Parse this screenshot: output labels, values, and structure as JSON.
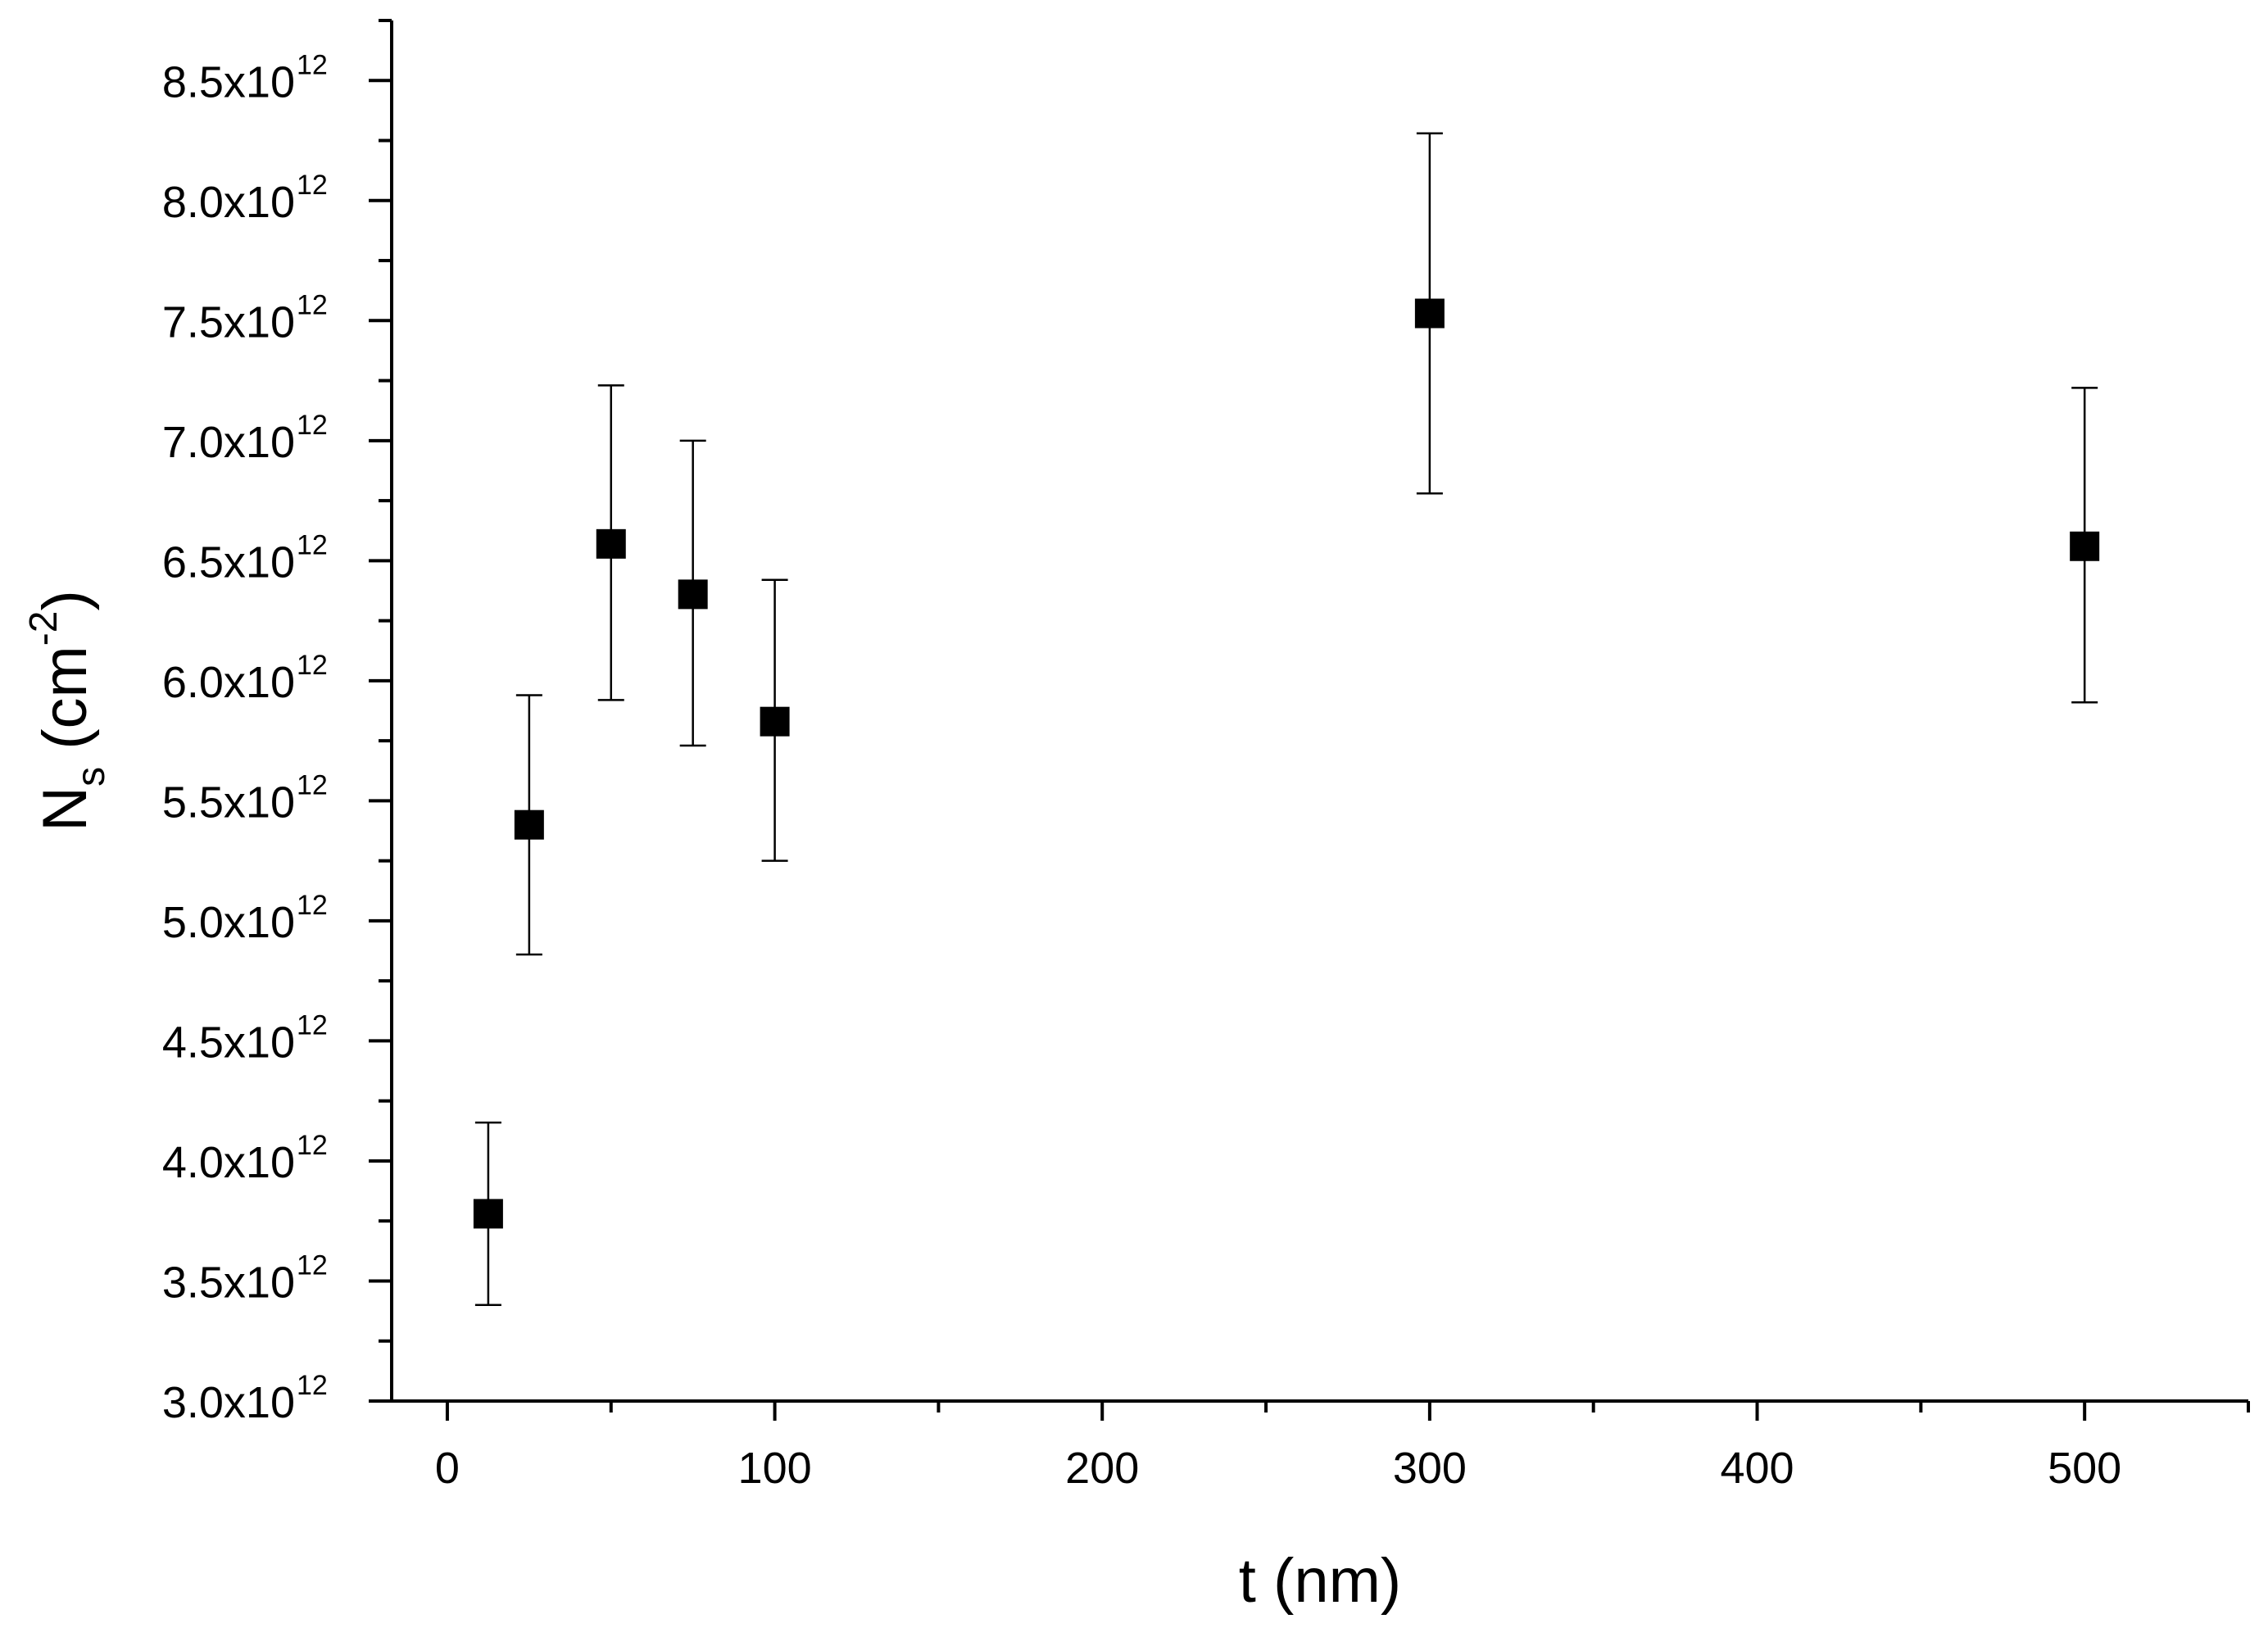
{
  "chart_data": {
    "type": "scatter",
    "xlabel": "t (nm)",
    "ylabel": {
      "symbol": "N",
      "subscript": "s",
      "unit_open": " (cm",
      "unit_exponent": "-2",
      "unit_close": ")"
    },
    "xlim": [
      -17,
      550
    ],
    "ylim": [
      3000000000000.0,
      8750000000000.0
    ],
    "x_ticks": [
      0,
      100,
      200,
      300,
      400,
      500
    ],
    "x_tick_labels": [
      "0",
      "100",
      "200",
      "300",
      "400",
      "500"
    ],
    "y_ticks": [
      3000000000000.0,
      3500000000000.0,
      4000000000000.0,
      4500000000000.0,
      5000000000000.0,
      5500000000000.0,
      6000000000000.0,
      6500000000000.0,
      7000000000000.0,
      7500000000000.0,
      8000000000000.0,
      8500000000000.0
    ],
    "y_tick_labels": [
      {
        "mantissa": "3.0x10",
        "exp": "12"
      },
      {
        "mantissa": "3.5x10",
        "exp": "12"
      },
      {
        "mantissa": "4.0x10",
        "exp": "12"
      },
      {
        "mantissa": "4.5x10",
        "exp": "12"
      },
      {
        "mantissa": "5.0x10",
        "exp": "12"
      },
      {
        "mantissa": "5.5x10",
        "exp": "12"
      },
      {
        "mantissa": "6.0x10",
        "exp": "12"
      },
      {
        "mantissa": "6.5x10",
        "exp": "12"
      },
      {
        "mantissa": "7.0x10",
        "exp": "12"
      },
      {
        "mantissa": "7.5x10",
        "exp": "12"
      },
      {
        "mantissa": "8.0x10",
        "exp": "12"
      },
      {
        "mantissa": "8.5x10",
        "exp": "12"
      }
    ],
    "grid": false,
    "marker": "filled-square",
    "color": "#000000",
    "points": [
      {
        "x": 12.5,
        "y": 3780000000000.0,
        "err_low": 3400000000000.0,
        "err_high": 4160000000000.0
      },
      {
        "x": 25,
        "y": 5400000000000.0,
        "err_low": 4860000000000.0,
        "err_high": 5940000000000.0
      },
      {
        "x": 50,
        "y": 6570000000000.0,
        "err_low": 5920000000000.0,
        "err_high": 7230000000000.0
      },
      {
        "x": 75,
        "y": 6360000000000.0,
        "err_low": 5730000000000.0,
        "err_high": 7000000000000.0
      },
      {
        "x": 100,
        "y": 5830000000000.0,
        "err_low": 5250000000000.0,
        "err_high": 6420000000000.0
      },
      {
        "x": 300,
        "y": 7530000000000.0,
        "err_low": 6780000000000.0,
        "err_high": 8280000000000.0
      },
      {
        "x": 500,
        "y": 6560000000000.0,
        "err_low": 5910000000000.0,
        "err_high": 7220000000000.0
      }
    ]
  }
}
